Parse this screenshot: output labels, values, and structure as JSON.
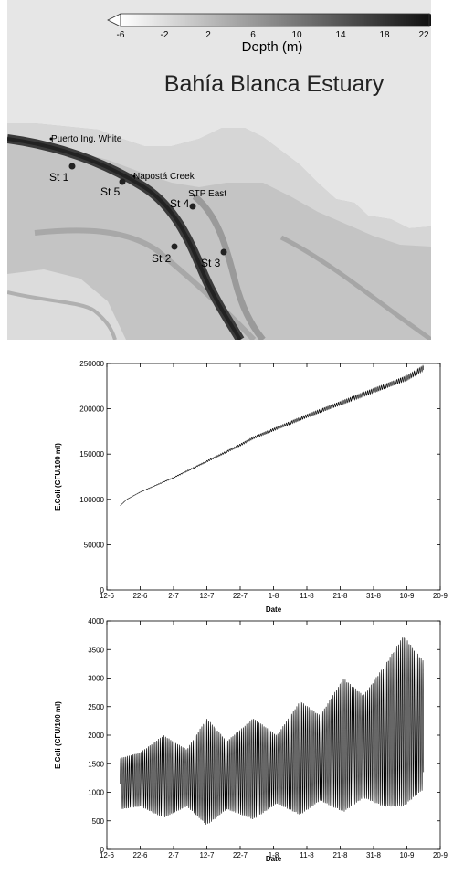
{
  "map": {
    "colorbar": {
      "label": "Depth (m)",
      "ticks": [
        "-6",
        "-2",
        "2",
        "6",
        "10",
        "14",
        "18",
        "22"
      ]
    },
    "title": "Bahía Blanca Estuary",
    "places": [
      {
        "id": "puerto",
        "label": "Puerto Ing. White"
      },
      {
        "id": "napasta",
        "label": "Napostá Creek"
      },
      {
        "id": "stp",
        "label": "STP East"
      }
    ],
    "stations": [
      {
        "id": "st1",
        "label": "St 1"
      },
      {
        "id": "st5",
        "label": "St 5"
      },
      {
        "id": "st4",
        "label": "St 4"
      },
      {
        "id": "st2",
        "label": "St 2"
      },
      {
        "id": "st3",
        "label": "St 3"
      }
    ],
    "colors": {
      "water_deep": "#333333",
      "land": "#d4d4d4",
      "shallow": "#ececec",
      "marker": "#222222"
    }
  },
  "chart_data": [
    {
      "type": "line",
      "title": "",
      "xlabel": "Date",
      "ylabel": "E.Coli (CFU/100 ml)",
      "xticks": [
        "12-6",
        "22-6",
        "2-7",
        "12-7",
        "22-7",
        "1-8",
        "11-8",
        "21-8",
        "31-8",
        "10-9",
        "20-9"
      ],
      "yticks": [
        "0",
        "50000",
        "100000",
        "150000",
        "200000",
        "250000"
      ],
      "ylim": [
        0,
        250000
      ],
      "xlim": [
        "2000-06-12",
        "2000-09-20"
      ],
      "series": [
        {
          "x": [
            "2000-06-16",
            "2000-06-18",
            "2000-06-22",
            "2000-07-02",
            "2000-07-12",
            "2000-07-22",
            "2000-07-26",
            "2000-08-01",
            "2000-08-11",
            "2000-08-21",
            "2000-08-31",
            "2000-09-10",
            "2000-09-15"
          ],
          "values": [
            93000,
            100000,
            108000,
            124000,
            142000,
            160000,
            168000,
            177000,
            192000,
            206000,
            220000,
            234000,
            245000
          ]
        }
      ],
      "oscillation_amplitude_end": 3000,
      "color": "#000000"
    },
    {
      "type": "line",
      "title": "",
      "xlabel": "Date",
      "ylabel": "E.Coli (CFU/100 ml)",
      "xticks": [
        "12-6",
        "22-6",
        "2-7",
        "12-7",
        "22-7",
        "1-8",
        "11-8",
        "21-8",
        "31-8",
        "10-9",
        "20-9"
      ],
      "yticks": [
        "0",
        "500",
        "1000",
        "1500",
        "2000",
        "2500",
        "3000",
        "3500",
        "4000"
      ],
      "ylim": [
        0,
        4000
      ],
      "xlim": [
        "2000-06-12",
        "2000-09-20"
      ],
      "envelope": {
        "x": [
          "2000-06-16",
          "2000-06-22",
          "2000-06-29",
          "2000-07-06",
          "2000-07-12",
          "2000-07-18",
          "2000-07-26",
          "2000-08-02",
          "2000-08-09",
          "2000-08-15",
          "2000-08-22",
          "2000-08-28",
          "2000-09-03",
          "2000-09-09",
          "2000-09-15"
        ],
        "upper": [
          1600,
          1700,
          2000,
          1750,
          2300,
          1900,
          2300,
          2000,
          2600,
          2350,
          3000,
          2700,
          3200,
          3750,
          3300
        ],
        "lower": [
          700,
          750,
          550,
          750,
          420,
          700,
          520,
          800,
          600,
          850,
          650,
          900,
          750,
          750,
          1050
        ]
      },
      "cycles_per_day": 1.93,
      "color": "#000000"
    }
  ]
}
